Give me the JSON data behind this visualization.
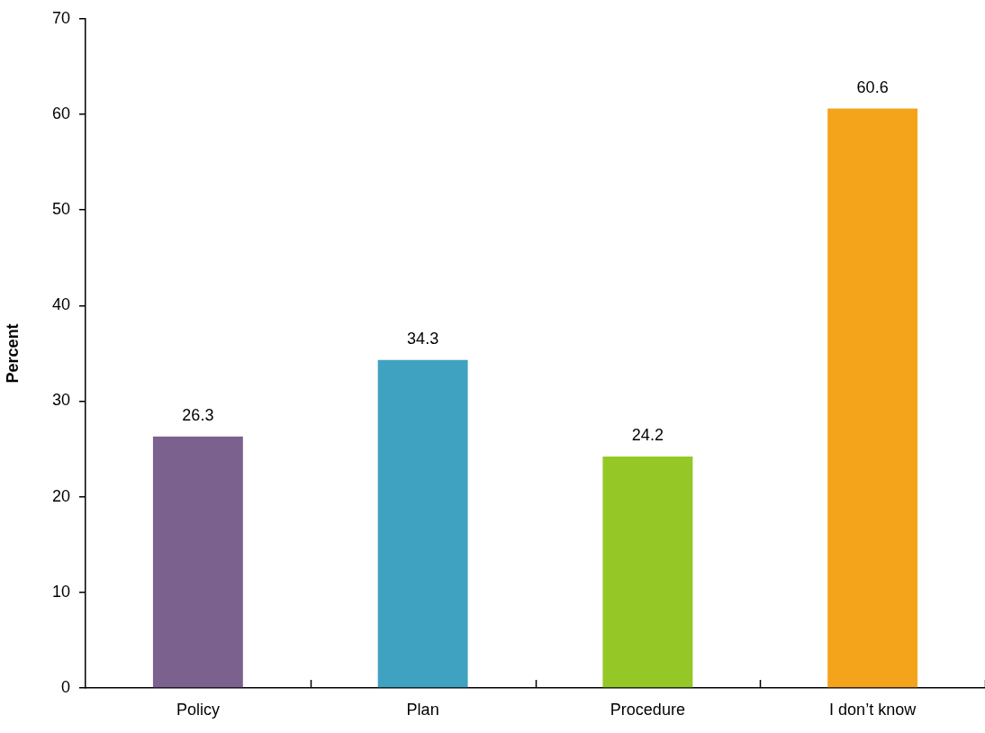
{
  "chart_data": {
    "type": "bar",
    "ylabel": "Percent",
    "categories": [
      "Policy",
      "Plan",
      "Procedure",
      "I don’t know"
    ],
    "values": [
      26.3,
      34.3,
      24.2,
      60.6
    ],
    "colors": [
      "#7b618e",
      "#3fa2c0",
      "#95c727",
      "#f4a41b"
    ],
    "ylim": [
      0,
      70
    ],
    "yticks": [
      0,
      10,
      20,
      30,
      40,
      50,
      60,
      70
    ],
    "data_labels": true
  }
}
